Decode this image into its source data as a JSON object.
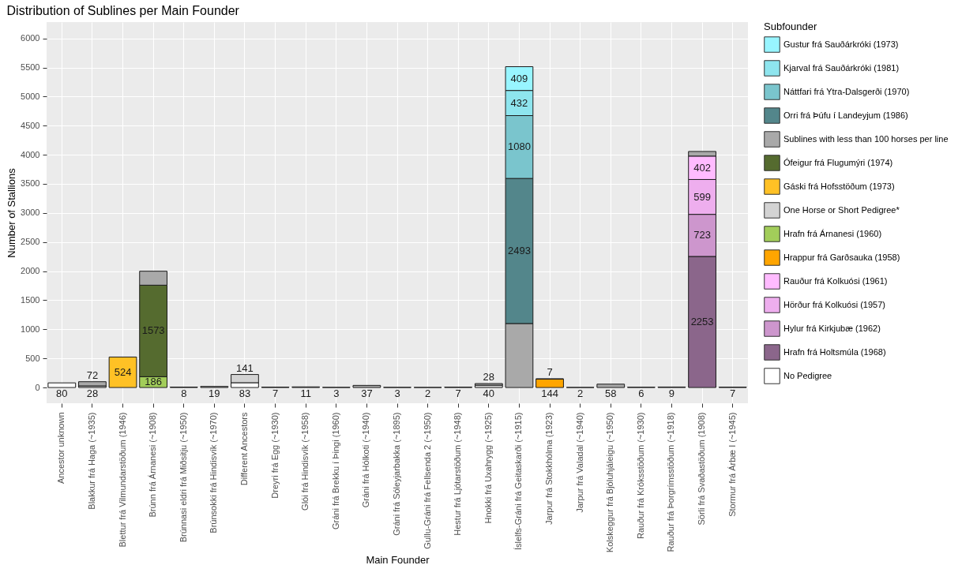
{
  "chart_data": {
    "type": "bar",
    "stacked": true,
    "title": "Distribution of Sublines per Main Founder",
    "xlabel": "Main Founder",
    "ylabel": "Number of Stallions",
    "legend_title": "Subfounder",
    "legend": "right",
    "grid": true,
    "categories": [
      "Ancestor unknown",
      "Blakkur frá Haga (~1935)",
      "Blettur frá Vilmundarstöðum (1946)",
      "Brúnn frá Árnanesi (~1908)",
      "Brúnnasi eldri frá Miðsitju (~1950)",
      "Brúnsokki frá Hindisvík (~1970)",
      "Different Ancestors",
      "Dreyri frá Egg (~1930)",
      "Glói frá Hindisvík (~1958)",
      "Gráni frá Brekku í Þingi (1960)",
      "Gráni frá Hólkoti (~1940)",
      "Gráni frá Sóleyjarbakka (~1895)",
      "Gullu-Gráni frá Fellsenda 2 (~1950)",
      "Hestur frá Ljótarstöðum (~1948)",
      "Hnokki frá Uxahrygg (~1925)",
      "Íslelfs-Gráni frá Geitaskarði (~1915)",
      "Jarpur frá Stokkhólma (1923)",
      "Jarpur frá Valadal (~1940)",
      "Kolskeggur frá Bjóluhjáleigu (~1950)",
      "Rauður frá Króksstöðum (~1930)",
      "Rauður frá Þorgrímsstöðum (~1918)",
      "Sörli frá Svaðastöðum (1908)",
      "Stormur frá Árbæ I (~1945)"
    ],
    "ylim": [
      -270,
      6280
    ],
    "yticks": [
      0,
      500,
      1000,
      1500,
      2000,
      2500,
      3000,
      3500,
      4000,
      4500,
      5000,
      5500,
      6000
    ],
    "series": [
      {
        "name": "No Pedigree",
        "color": "#ffffff",
        "values": [
          80,
          null,
          null,
          null,
          null,
          null,
          83,
          null,
          null,
          null,
          null,
          null,
          null,
          null,
          null,
          null,
          null,
          null,
          null,
          null,
          null,
          null,
          null
        ],
        "value_labels": [
          "80",
          null,
          null,
          null,
          null,
          null,
          "83",
          null,
          null,
          null,
          null,
          null,
          null,
          null,
          null,
          null,
          null,
          null,
          null,
          null,
          null,
          null,
          null
        ]
      },
      {
        "name": "Hrafn frá Holtsmúla (1968)",
        "color": "#8b668b",
        "values": [
          null,
          null,
          null,
          null,
          null,
          null,
          null,
          null,
          null,
          null,
          null,
          null,
          null,
          null,
          null,
          null,
          null,
          null,
          null,
          null,
          null,
          2253,
          null
        ],
        "value_labels": [
          null,
          null,
          null,
          null,
          null,
          null,
          null,
          null,
          null,
          null,
          null,
          null,
          null,
          null,
          null,
          null,
          null,
          null,
          null,
          null,
          null,
          "2253",
          null
        ]
      },
      {
        "name": "Hylur frá Kirkjubæ (1962)",
        "color": "#cd96cd",
        "values": [
          null,
          null,
          null,
          null,
          null,
          null,
          null,
          null,
          null,
          null,
          null,
          null,
          null,
          null,
          null,
          null,
          null,
          null,
          null,
          null,
          null,
          723,
          null
        ],
        "value_labels": [
          null,
          null,
          null,
          null,
          null,
          null,
          null,
          null,
          null,
          null,
          null,
          null,
          null,
          null,
          null,
          null,
          null,
          null,
          null,
          null,
          null,
          "723",
          null
        ]
      },
      {
        "name": "Hörður frá Kolkuósi (1957)",
        "color": "#eeaeee",
        "values": [
          null,
          null,
          null,
          null,
          null,
          null,
          null,
          null,
          null,
          null,
          null,
          null,
          null,
          null,
          null,
          null,
          null,
          null,
          null,
          null,
          null,
          599,
          null
        ],
        "value_labels": [
          null,
          null,
          null,
          null,
          null,
          null,
          null,
          null,
          null,
          null,
          null,
          null,
          null,
          null,
          null,
          null,
          null,
          null,
          null,
          null,
          null,
          "599",
          null
        ]
      },
      {
        "name": "Rauður frá Kolkuósi (1961)",
        "color": "#ffbbff",
        "values": [
          null,
          null,
          null,
          null,
          null,
          null,
          null,
          null,
          null,
          null,
          null,
          null,
          null,
          null,
          null,
          null,
          null,
          null,
          null,
          null,
          null,
          402,
          null
        ],
        "value_labels": [
          null,
          null,
          null,
          null,
          null,
          null,
          null,
          null,
          null,
          null,
          null,
          null,
          null,
          null,
          null,
          null,
          null,
          null,
          null,
          null,
          null,
          "402",
          null
        ]
      },
      {
        "name": "Hrappur frá Garðsauka (1958)",
        "color": "#ffa500",
        "values": [
          null,
          null,
          null,
          null,
          null,
          null,
          null,
          null,
          null,
          null,
          null,
          null,
          null,
          null,
          null,
          null,
          144,
          null,
          null,
          null,
          null,
          null,
          null
        ],
        "value_labels": [
          null,
          null,
          null,
          null,
          null,
          null,
          null,
          null,
          null,
          null,
          null,
          null,
          null,
          null,
          null,
          null,
          "144",
          null,
          null,
          null,
          null,
          null,
          null
        ]
      },
      {
        "name": "Hrafn frá Árnanesi (1960)",
        "color": "#a2cd5a",
        "values": [
          null,
          null,
          null,
          186,
          null,
          null,
          null,
          null,
          null,
          null,
          null,
          null,
          null,
          null,
          null,
          null,
          null,
          null,
          null,
          null,
          null,
          null,
          null
        ],
        "value_labels": [
          null,
          null,
          null,
          "186",
          null,
          null,
          null,
          null,
          null,
          null,
          null,
          null,
          null,
          null,
          null,
          null,
          null,
          null,
          null,
          null,
          null,
          null,
          null
        ]
      },
      {
        "name": "One Horse or Short Pedigree*",
        "color": "#d3d3d3",
        "values": [
          null,
          28,
          null,
          null,
          8,
          null,
          141,
          7,
          null,
          3,
          null,
          3,
          2,
          7,
          40,
          null,
          7,
          2,
          null,
          6,
          9,
          null,
          7
        ],
        "value_labels": [
          null,
          "28",
          null,
          null,
          "8",
          null,
          "141",
          "7",
          null,
          "3",
          null,
          "3",
          "2",
          "7",
          "40",
          null,
          "7",
          "2",
          null,
          "6",
          "9",
          null,
          "7"
        ]
      },
      {
        "name": "Gáski frá Hofsstöðum (1973)",
        "color": "#ffc125",
        "values": [
          null,
          null,
          524,
          null,
          null,
          null,
          null,
          null,
          null,
          null,
          null,
          null,
          null,
          null,
          null,
          null,
          null,
          null,
          null,
          null,
          null,
          null,
          null
        ],
        "value_labels": [
          null,
          null,
          "524",
          null,
          null,
          null,
          null,
          null,
          null,
          null,
          null,
          null,
          null,
          null,
          null,
          null,
          null,
          null,
          null,
          null,
          null,
          null,
          null
        ]
      },
      {
        "name": "Ófeigur frá Flugumýri (1974)",
        "color": "#556b2f",
        "values": [
          null,
          null,
          null,
          1573,
          null,
          null,
          null,
          null,
          null,
          null,
          null,
          null,
          null,
          null,
          null,
          null,
          null,
          null,
          null,
          null,
          null,
          null,
          null
        ],
        "value_labels": [
          null,
          null,
          null,
          "1573",
          null,
          null,
          null,
          null,
          null,
          null,
          null,
          null,
          null,
          null,
          null,
          null,
          null,
          null,
          null,
          null,
          null,
          null,
          null
        ]
      },
      {
        "name": "Sublines with less than 100 horses per line",
        "color": "#a9a9a9",
        "values": [
          null,
          72,
          null,
          240,
          null,
          19,
          null,
          null,
          11,
          null,
          37,
          null,
          null,
          null,
          28,
          1100,
          null,
          null,
          58,
          null,
          null,
          80,
          null
        ],
        "value_labels": [
          null,
          "72",
          null,
          null,
          null,
          "19",
          null,
          null,
          "11",
          null,
          "37",
          null,
          null,
          null,
          "28",
          null,
          null,
          null,
          "58",
          null,
          null,
          null,
          null
        ]
      },
      {
        "name": "Orri frá Þúfu í Landeyjum (1986)",
        "color": "#53868b",
        "values": [
          null,
          null,
          null,
          null,
          null,
          null,
          null,
          null,
          null,
          null,
          null,
          null,
          null,
          null,
          null,
          2493,
          null,
          null,
          null,
          null,
          null,
          null,
          null
        ],
        "value_labels": [
          null,
          null,
          null,
          null,
          null,
          null,
          null,
          null,
          null,
          null,
          null,
          null,
          null,
          null,
          null,
          "2493",
          null,
          null,
          null,
          null,
          null,
          null,
          null
        ]
      },
      {
        "name": "Náttfari frá Ytra-Dalsgerði (1970)",
        "color": "#7ac5cd",
        "values": [
          null,
          null,
          null,
          null,
          null,
          null,
          null,
          null,
          null,
          null,
          null,
          null,
          null,
          null,
          null,
          1080,
          null,
          null,
          null,
          null,
          null,
          null,
          null
        ],
        "value_labels": [
          null,
          null,
          null,
          null,
          null,
          null,
          null,
          null,
          null,
          null,
          null,
          null,
          null,
          null,
          null,
          "1080",
          null,
          null,
          null,
          null,
          null,
          null,
          null
        ]
      },
      {
        "name": "Kjarval frá Sauðárkróki (1981)",
        "color": "#8ee5ee",
        "values": [
          null,
          null,
          null,
          null,
          null,
          null,
          null,
          null,
          null,
          null,
          null,
          null,
          null,
          null,
          null,
          432,
          null,
          null,
          null,
          null,
          null,
          null,
          null
        ],
        "value_labels": [
          null,
          null,
          null,
          null,
          null,
          null,
          null,
          null,
          null,
          null,
          null,
          null,
          null,
          null,
          null,
          "432",
          null,
          null,
          null,
          null,
          null,
          null,
          null
        ]
      },
      {
        "name": "Gustur frá Sauðárkróki (1973)",
        "color": "#98f5ff",
        "values": [
          null,
          null,
          null,
          null,
          null,
          null,
          null,
          null,
          null,
          null,
          null,
          null,
          null,
          null,
          null,
          409,
          null,
          null,
          null,
          null,
          null,
          null,
          null
        ],
        "value_labels": [
          null,
          null,
          null,
          null,
          null,
          null,
          null,
          null,
          null,
          null,
          null,
          null,
          null,
          null,
          null,
          "409",
          null,
          null,
          null,
          null,
          null,
          null,
          null
        ]
      }
    ]
  }
}
